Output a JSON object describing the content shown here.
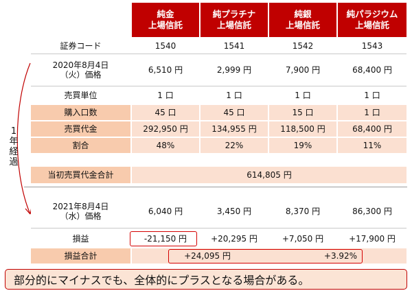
{
  "headers": [
    [
      "純金",
      "上場信託"
    ],
    [
      "純プラチナ",
      "上場信託"
    ],
    [
      "純銀",
      "上場信託"
    ],
    [
      "純パラジウム",
      "上場信託"
    ]
  ],
  "rows": [
    {
      "label": "証券コード",
      "values": [
        "1540",
        "1541",
        "1542",
        "1543"
      ]
    },
    {
      "label": [
        "2020年8月4日",
        "（火）価格"
      ],
      "values": [
        "6,510 円",
        "2,999 円",
        "7,900 円",
        "68,400 円"
      ]
    },
    {
      "label": "売買単位",
      "values": [
        "1 口",
        "1 口",
        "1 口",
        "1 口"
      ]
    },
    {
      "label": "購入口数",
      "values": [
        "45 口",
        "45 口",
        "15 口",
        "1 口"
      ]
    },
    {
      "label": "売買代金",
      "values": [
        "292,950 円",
        "134,955 円",
        "118,500 円",
        "68,400 円"
      ]
    },
    {
      "label": "割合",
      "values": [
        "48%",
        "22%",
        "19%",
        "11%"
      ]
    }
  ],
  "initial_total": {
    "label": "当初売買代金合計",
    "value": "614,805 円"
  },
  "rows2": [
    {
      "label": [
        "2021年8月4日",
        "（水）価格"
      ],
      "values": [
        "6,040 円",
        "3,450 円",
        "8,370 円",
        "86,300 円"
      ]
    },
    {
      "label": "損益",
      "values": [
        "-21,150 円",
        "+20,295 円",
        "+7,050 円",
        "+17,900 円"
      ]
    }
  ],
  "pl_total": {
    "label": "損益合計",
    "yen": "+24,095 円",
    "pct": "+3.92%"
  },
  "elapsed_label": [
    "1",
    "年",
    "経",
    "過"
  ],
  "note": "部分的にマイナスでも、全体的にプラスとなる場合がある。",
  "colors": {
    "header_red": "#c00000",
    "row_pink": "#f8cbad",
    "highlight_red": "#d40000"
  }
}
